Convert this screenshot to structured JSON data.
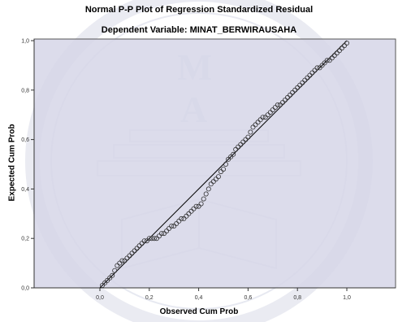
{
  "chart_data": {
    "type": "scatter",
    "title": "Normal P-P Plot of Regression Standardized Residual",
    "subtitle": "Dependent Variable: MINAT_BERWIRAUSAHA",
    "xlabel": "Observed Cum Prob",
    "ylabel": "Expected Cum Prob",
    "xlim": [
      0.0,
      1.0
    ],
    "ylim": [
      0.0,
      1.0
    ],
    "x_ticks": [
      "0,0",
      "0,2",
      "0,4",
      "0,6",
      "0,8",
      "1,0"
    ],
    "y_ticks": [
      "0,0",
      "0,2",
      "0,4",
      "0,6",
      "0,8",
      "1,0"
    ],
    "reference_line": {
      "from": [
        0.0,
        0.0
      ],
      "to": [
        1.0,
        1.0
      ]
    },
    "series": [
      {
        "points": [
          [
            0.01,
            0.01
          ],
          [
            0.02,
            0.02
          ],
          [
            0.03,
            0.03
          ],
          [
            0.04,
            0.04
          ],
          [
            0.05,
            0.05
          ],
          [
            0.06,
            0.07
          ],
          [
            0.07,
            0.09
          ],
          [
            0.08,
            0.1
          ],
          [
            0.09,
            0.11
          ],
          [
            0.1,
            0.11
          ],
          [
            0.11,
            0.12
          ],
          [
            0.12,
            0.13
          ],
          [
            0.13,
            0.14
          ],
          [
            0.14,
            0.15
          ],
          [
            0.15,
            0.16
          ],
          [
            0.16,
            0.17
          ],
          [
            0.17,
            0.18
          ],
          [
            0.18,
            0.19
          ],
          [
            0.19,
            0.19
          ],
          [
            0.2,
            0.2
          ],
          [
            0.21,
            0.2
          ],
          [
            0.22,
            0.2
          ],
          [
            0.23,
            0.2
          ],
          [
            0.24,
            0.21
          ],
          [
            0.25,
            0.22
          ],
          [
            0.26,
            0.22
          ],
          [
            0.27,
            0.23
          ],
          [
            0.28,
            0.24
          ],
          [
            0.29,
            0.25
          ],
          [
            0.3,
            0.25
          ],
          [
            0.31,
            0.26
          ],
          [
            0.32,
            0.27
          ],
          [
            0.33,
            0.28
          ],
          [
            0.34,
            0.28
          ],
          [
            0.35,
            0.29
          ],
          [
            0.36,
            0.3
          ],
          [
            0.37,
            0.31
          ],
          [
            0.38,
            0.32
          ],
          [
            0.39,
            0.33
          ],
          [
            0.4,
            0.33
          ],
          [
            0.41,
            0.34
          ],
          [
            0.42,
            0.36
          ],
          [
            0.43,
            0.38
          ],
          [
            0.44,
            0.4
          ],
          [
            0.45,
            0.42
          ],
          [
            0.46,
            0.43
          ],
          [
            0.47,
            0.44
          ],
          [
            0.48,
            0.45
          ],
          [
            0.49,
            0.47
          ],
          [
            0.5,
            0.48
          ],
          [
            0.51,
            0.5
          ],
          [
            0.52,
            0.52
          ],
          [
            0.53,
            0.53
          ],
          [
            0.54,
            0.54
          ],
          [
            0.55,
            0.56
          ],
          [
            0.56,
            0.57
          ],
          [
            0.57,
            0.58
          ],
          [
            0.58,
            0.59
          ],
          [
            0.59,
            0.6
          ],
          [
            0.6,
            0.61
          ],
          [
            0.61,
            0.63
          ],
          [
            0.62,
            0.65
          ],
          [
            0.63,
            0.66
          ],
          [
            0.64,
            0.67
          ],
          [
            0.65,
            0.68
          ],
          [
            0.66,
            0.69
          ],
          [
            0.67,
            0.69
          ],
          [
            0.68,
            0.7
          ],
          [
            0.69,
            0.71
          ],
          [
            0.7,
            0.72
          ],
          [
            0.71,
            0.73
          ],
          [
            0.72,
            0.74
          ],
          [
            0.73,
            0.74
          ],
          [
            0.74,
            0.75
          ],
          [
            0.75,
            0.76
          ],
          [
            0.76,
            0.77
          ],
          [
            0.77,
            0.78
          ],
          [
            0.78,
            0.79
          ],
          [
            0.79,
            0.8
          ],
          [
            0.8,
            0.81
          ],
          [
            0.81,
            0.82
          ],
          [
            0.82,
            0.83
          ],
          [
            0.83,
            0.84
          ],
          [
            0.84,
            0.85
          ],
          [
            0.85,
            0.86
          ],
          [
            0.86,
            0.87
          ],
          [
            0.87,
            0.88
          ],
          [
            0.88,
            0.89
          ],
          [
            0.89,
            0.89
          ],
          [
            0.9,
            0.9
          ],
          [
            0.91,
            0.91
          ],
          [
            0.92,
            0.92
          ],
          [
            0.93,
            0.92
          ],
          [
            0.94,
            0.93
          ],
          [
            0.95,
            0.94
          ],
          [
            0.96,
            0.95
          ],
          [
            0.97,
            0.96
          ],
          [
            0.98,
            0.97
          ],
          [
            0.99,
            0.98
          ],
          [
            1.0,
            0.99
          ]
        ]
      }
    ],
    "grid": false,
    "colors": {
      "plot_background": "#d6d6e8",
      "marker_stroke": "#333333",
      "reference_line": "#000000"
    }
  }
}
